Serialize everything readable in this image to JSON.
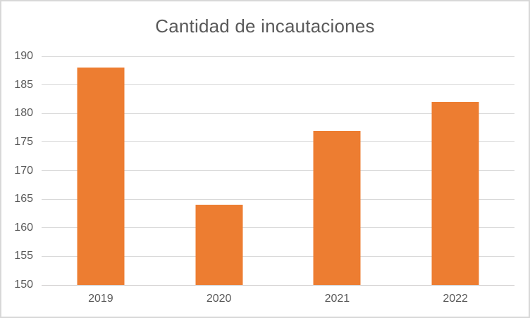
{
  "chart_data": {
    "type": "bar",
    "title": "Cantidad de incautaciones",
    "categories": [
      "2019",
      "2020",
      "2021",
      "2022"
    ],
    "values": [
      188,
      164,
      177,
      182
    ],
    "xlabel": "",
    "ylabel": "",
    "ylim": [
      150,
      190
    ],
    "ytick_step": 5,
    "yticks": [
      150,
      155,
      160,
      165,
      170,
      175,
      180,
      185,
      190
    ],
    "grid": true,
    "legend": "none"
  },
  "colors": {
    "bar": "#ED7D31",
    "text": "#595959",
    "gridline": "#D9D9D9",
    "axis_line": "#D0CECE",
    "border": "#D8D8D8",
    "background": "#FFFFFF"
  }
}
